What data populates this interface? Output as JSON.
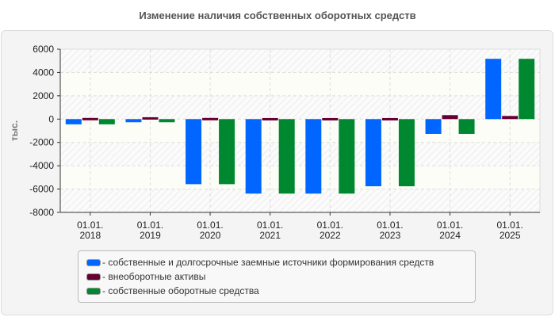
{
  "chart_data": {
    "type": "bar",
    "title": "Изменение наличия собственных оборотных средств",
    "ylabel": "тыс.",
    "xlabel": "",
    "ylim": [
      -8000,
      6000
    ],
    "yticks": [
      6000,
      4000,
      2000,
      0,
      -2000,
      -4000,
      -6000,
      -8000
    ],
    "grid": true,
    "legend_position": "bottom",
    "categories": [
      [
        "01.01.",
        "2018"
      ],
      [
        "01.01.",
        "2019"
      ],
      [
        "01.01.",
        "2020"
      ],
      [
        "01.01.",
        "2021"
      ],
      [
        "01.01.",
        "2022"
      ],
      [
        "01.01.",
        "2023"
      ],
      [
        "01.01.",
        "2024"
      ],
      [
        "01.01.",
        "2025"
      ]
    ],
    "series": [
      {
        "name": "- собственные и долгосрочные заемные источники формирования средств",
        "color": "#0066ff",
        "values": [
          -450,
          -270,
          -5580,
          -6390,
          -6390,
          -5760,
          -1270,
          5170
        ]
      },
      {
        "name": "- внеоборотные активы",
        "color": "#660033",
        "values": [
          100,
          160,
          100,
          90,
          90,
          90,
          340,
          270
        ]
      },
      {
        "name": "- собственные оборотные средства",
        "color": "#008830",
        "values": [
          -450,
          -270,
          -5580,
          -6390,
          -6390,
          -5760,
          -1270,
          5170
        ]
      }
    ]
  }
}
